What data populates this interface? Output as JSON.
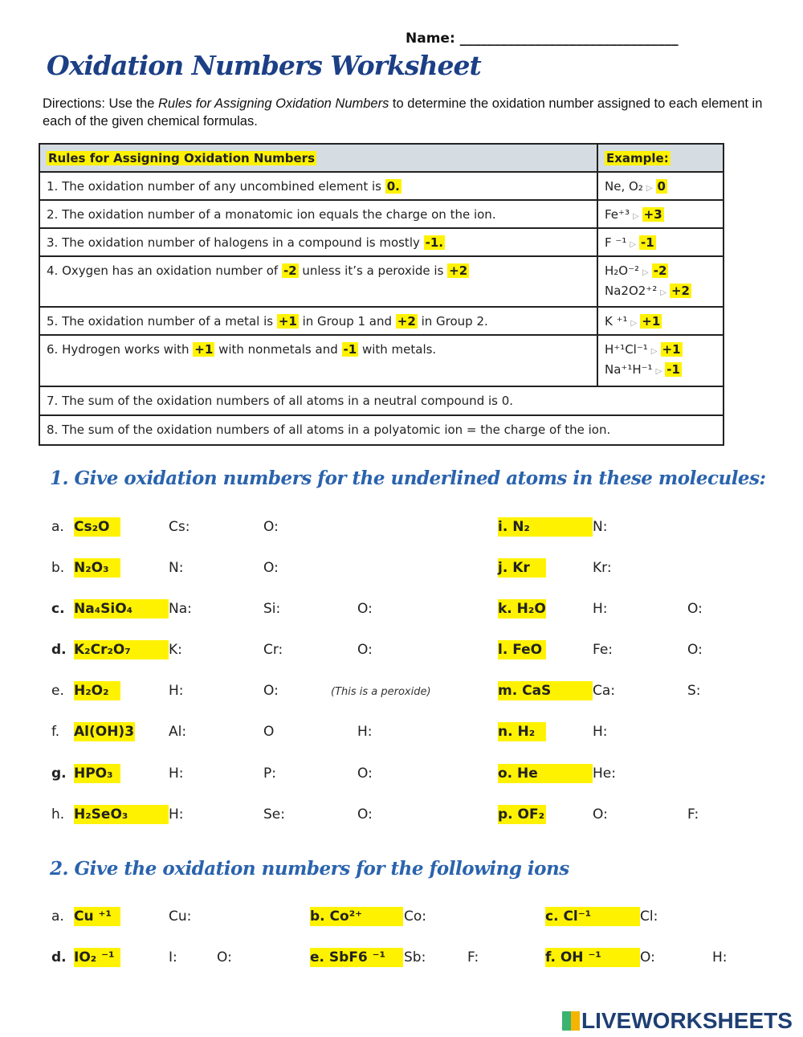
{
  "header": {
    "name_label": "Name: ________________________________",
    "title": "Oxidation Numbers Worksheet",
    "directions_pre": "Directions: Use the ",
    "directions_em": "Rules for Assigning Oxidation Numbers",
    "directions_post": " to determine the oxidation number assigned to each element in each of the given chemical formulas."
  },
  "rules": {
    "header": "Rules for Assigning Oxidation Numbers",
    "example_header": "Example:",
    "rows": [
      {
        "parts": [
          "1. The oxidation number of any uncombined element is ",
          {
            "hl": "0."
          }
        ],
        "examples": [
          [
            "Ne, O₂",
            "0"
          ]
        ]
      },
      {
        "parts": [
          "2. The oxidation number of a monatomic ion equals the charge on the ion."
        ],
        "examples": [
          [
            "Fe⁺³",
            "+3"
          ]
        ]
      },
      {
        "parts": [
          "3. The oxidation number of halogens in a compound is mostly ",
          {
            "hl": "-1."
          }
        ],
        "examples": [
          [
            "F ⁻¹",
            "-1"
          ]
        ]
      },
      {
        "parts": [
          "4. Oxygen has an oxidation number of ",
          {
            "hl": "-2"
          },
          " unless it’s a peroxide is ",
          {
            "hl": "+2"
          }
        ],
        "examples": [
          [
            "H₂O⁻²",
            "-2"
          ],
          [
            "Na2O2⁺²",
            "+2"
          ]
        ]
      },
      {
        "parts": [
          "5.  The oxidation number of a metal is ",
          {
            "hl": "+1"
          },
          " in Group 1 and ",
          {
            "hl": "+2"
          },
          " in Group 2."
        ],
        "examples": [
          [
            "K ⁺¹",
            "+1"
          ]
        ]
      },
      {
        "parts": [
          "6. Hydrogen works with ",
          {
            "hl": "+1"
          },
          " with nonmetals and ",
          {
            "hl": "-1"
          },
          " with metals."
        ],
        "examples": [
          [
            "H⁺¹Cl⁻¹",
            "+1"
          ],
          [
            "Na⁺¹H⁻¹",
            "-1"
          ]
        ]
      },
      {
        "parts": [
          "7.  The sum of the oxidation numbers of all atoms in a neutral compound is 0."
        ],
        "full": true
      },
      {
        "parts": [
          "8. The sum of the oxidation numbers of all atoms in a polyatomic ion = the charge of the ion."
        ],
        "full": true
      }
    ]
  },
  "section1": {
    "heading": "1.  Give oxidation numbers for the underlined atoms in these molecules:",
    "left": [
      {
        "letter": "a.",
        "formula": "Cs₂O",
        "labels": [
          "Cs:",
          "O:"
        ]
      },
      {
        "letter": "b.",
        "formula": "N₂O₃",
        "labels": [
          "N:",
          "O:"
        ]
      },
      {
        "letter": "c.",
        "formula": "Na₄SiO₄",
        "labels": [
          "Na:",
          "Si:",
          "O:"
        ],
        "bold": true
      },
      {
        "letter": "d.",
        "formula": "K₂Cr₂O₇",
        "labels": [
          "K:",
          "Cr:",
          "O:"
        ],
        "bold": true
      },
      {
        "letter": "e.",
        "formula": "H₂O₂",
        "labels": [
          "H:",
          "O:"
        ],
        "note": "(This is a peroxide)"
      },
      {
        "letter": "f.",
        "formula": "Al(OH)3",
        "labels": [
          "Al:",
          "O",
          "H:"
        ]
      },
      {
        "letter": "g.",
        "formula": "HPO₃",
        "labels": [
          "H:",
          "P:",
          "O:"
        ],
        "bold": true
      },
      {
        "letter": "h.",
        "formula": "H₂SeO₃",
        "labels": [
          "H:",
          "Se:",
          "O:"
        ]
      }
    ],
    "right": [
      {
        "formula": "i. N₂",
        "labels": [
          "N:"
        ]
      },
      {
        "formula": "j. Kr",
        "labels": [
          "Kr:"
        ]
      },
      {
        "formula": "k. H₂O",
        "labels": [
          "H:",
          "O:"
        ]
      },
      {
        "formula": "l. FeO",
        "labels": [
          "Fe:",
          "O:"
        ]
      },
      {
        "formula": "m. CaS",
        "labels": [
          "Ca:",
          "S:"
        ]
      },
      {
        "formula": "n. H₂",
        "labels": [
          "H:"
        ]
      },
      {
        "formula": "o. He",
        "labels": [
          "He:"
        ]
      },
      {
        "formula": "p. OF₂",
        "labels": [
          "O:",
          "F:"
        ]
      }
    ]
  },
  "section2": {
    "heading": "2. Give the oxidation numbers for the following ions",
    "rows": [
      [
        {
          "letter": "a.",
          "formula": "Cu ⁺¹",
          "labels": [
            "Cu:"
          ]
        },
        {
          "formula": "b. Co²⁺",
          "labels": [
            "Co:"
          ]
        },
        {
          "formula": "c.  Cl⁻¹",
          "labels": [
            "Cl:"
          ]
        }
      ],
      [
        {
          "letter": "d.",
          "formula": "IO₂ ⁻¹",
          "labels": [
            "I:",
            "O:"
          ],
          "bold": true
        },
        {
          "formula": "e. SbF6 ⁻¹",
          "labels": [
            "Sb:",
            "F:"
          ]
        },
        {
          "formula": "f.  OH ⁻¹",
          "labels": [
            "O:",
            "H:"
          ]
        }
      ]
    ]
  },
  "footer": {
    "logo": "LIVEWORKSHEETS"
  },
  "colors": {
    "highlight": "#fff200",
    "title": "#1c3f86",
    "heading": "#2a63ad",
    "table_header": "#d5dde3"
  }
}
